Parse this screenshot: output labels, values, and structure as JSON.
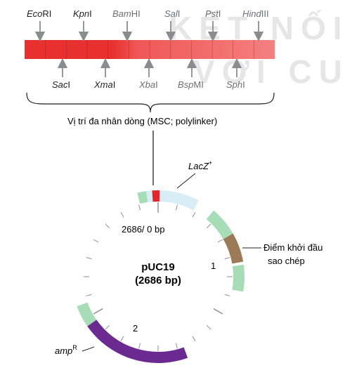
{
  "watermark": {
    "line1": "KẾT NỐI",
    "line2": "VỚI CU"
  },
  "sites_top": [
    {
      "name": "EcoRI",
      "italic": "Eco",
      "rest": "RI",
      "dark": true
    },
    {
      "name": "KpnI",
      "italic": "Kpn",
      "rest": "I",
      "dark": true
    },
    {
      "name": "BamHI",
      "italic": "Bam",
      "rest": "HI",
      "dark": false
    },
    {
      "name": "SalI",
      "italic": "Sal",
      "rest": "I",
      "dark": false
    },
    {
      "name": "PstI",
      "italic": "Pst",
      "rest": "I",
      "dark": false
    },
    {
      "name": "HindIII",
      "italic": "Hind",
      "rest": "III",
      "dark": false
    }
  ],
  "sites_bottom": [
    {
      "name": "SacI",
      "italic": "Sac",
      "rest": "I",
      "dark": true
    },
    {
      "name": "XmaI",
      "italic": "Xma",
      "rest": "I",
      "dark": true
    },
    {
      "name": "XbaI",
      "italic": "Xba",
      "rest": "I",
      "dark": false
    },
    {
      "name": "BspMI",
      "italic": "Bsp",
      "rest": "MI",
      "dark": false
    },
    {
      "name": "SphI",
      "italic": "Sph",
      "rest": "I",
      "dark": false
    }
  ],
  "msc_label": "Vị trí đa nhân dòng (MSC; polylinker)",
  "plasmid": {
    "name": "pUC19",
    "size": "(2686 bp)",
    "start_label": "2686/ 0 bp",
    "lacz_label": "LacZ",
    "lacz_sup": "+",
    "ori_label_line1": "Điểm khởi đầu",
    "ori_label_line2": "sao chép",
    "amp_label": "amp",
    "amp_sup": "R",
    "marker_1": "1",
    "marker_2": "2"
  },
  "colors": {
    "msc_bar_left": "#e8312f",
    "msc_bar_right": "#f26d6d",
    "green": "#1fa04e",
    "light_green": "#a6dcb6",
    "lacz": "#d8eef7",
    "ori": "#9c7a56",
    "amp": "#6a2a8f",
    "msc_red": "#e3262b",
    "arrow_grey": "#8a8c8e"
  }
}
